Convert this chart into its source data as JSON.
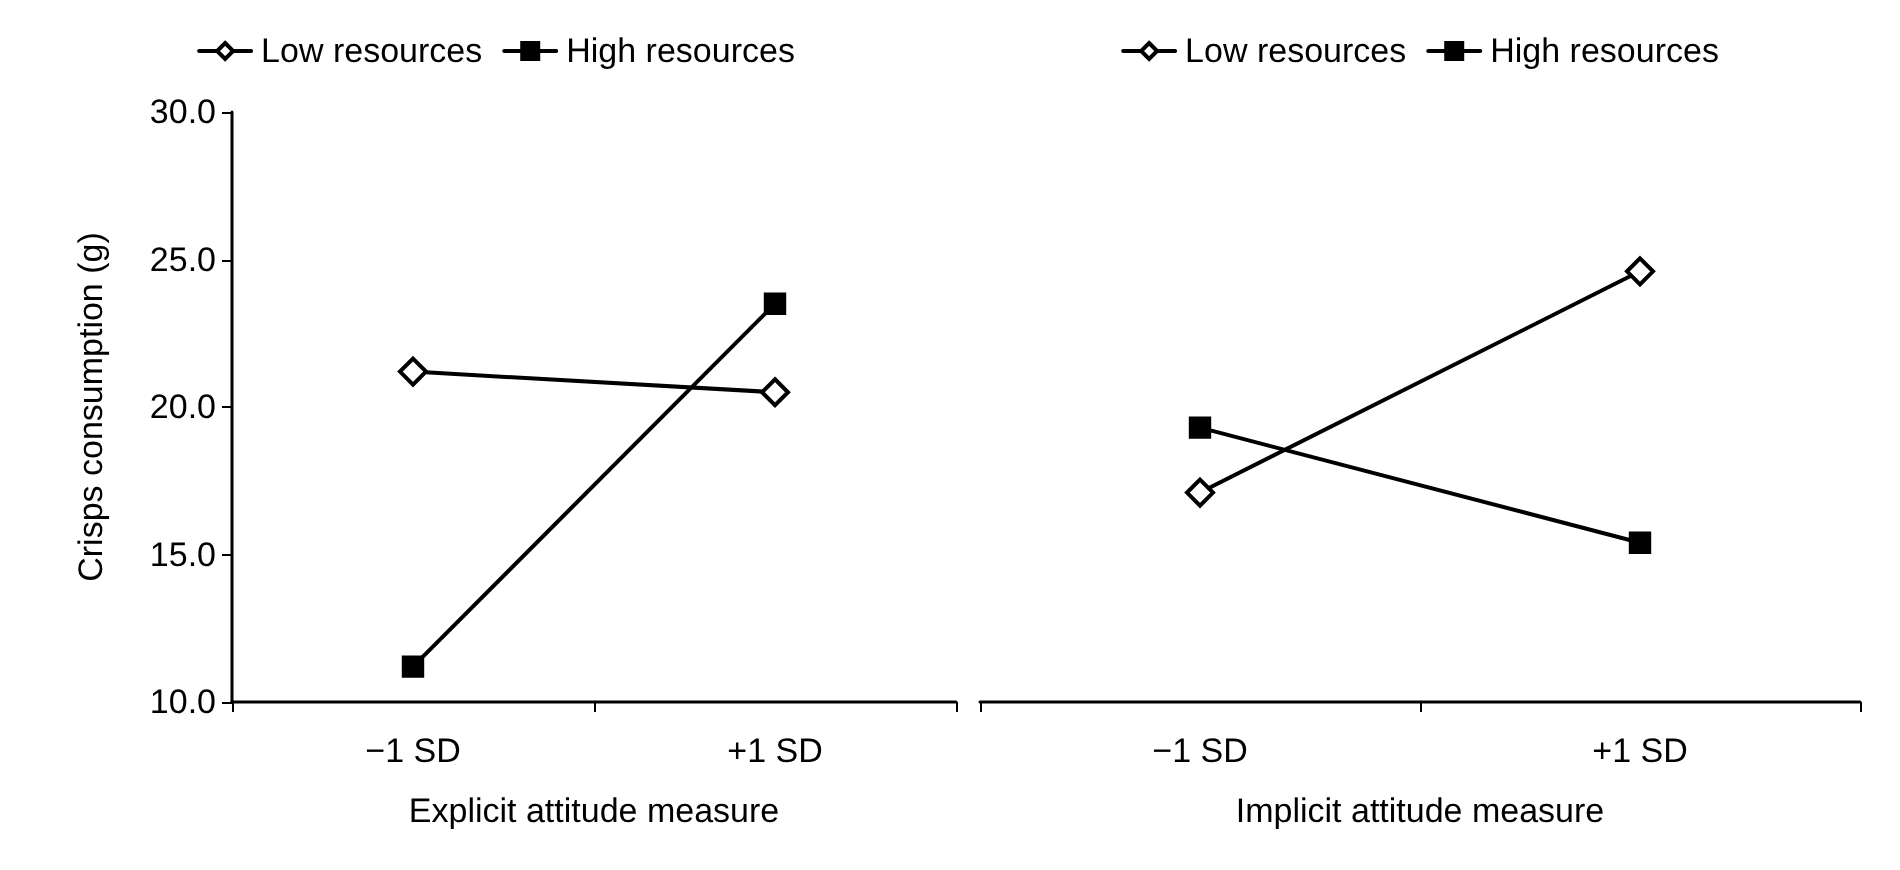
{
  "chart_data": [
    {
      "type": "line",
      "xlabel": "Explicit attitude measure",
      "ylabel": "Crisps consumption (g)",
      "categories": [
        "−1 SD",
        "+1 SD"
      ],
      "ylim": [
        10,
        30
      ],
      "yticks": [
        {
          "value": 10,
          "label": "10.0"
        },
        {
          "value": 15,
          "label": "15.0"
        },
        {
          "value": 20,
          "label": "20.0"
        },
        {
          "value": 25,
          "label": "25.0"
        },
        {
          "value": 30,
          "label": "30.0"
        }
      ],
      "grid": false,
      "legend": "top",
      "line_style": "solid",
      "series": [
        {
          "name": "Low resources",
          "color": "#000000",
          "marker": "diamond",
          "values": [
            21.2,
            20.5
          ]
        },
        {
          "name": "High resources",
          "color": "#000000",
          "marker": "square",
          "values": [
            11.2,
            23.5
          ]
        }
      ]
    },
    {
      "type": "line",
      "xlabel": "Implicit attitude measure",
      "categories": [
        "−1 SD",
        "+1 SD"
      ],
      "ylim": [
        10,
        30
      ],
      "tick_labels": "x",
      "grid": false,
      "legend": "top",
      "line_style": "solid",
      "series": [
        {
          "name": "Low resources",
          "color": "#000000",
          "marker": "diamond",
          "values": [
            17.1,
            24.6
          ]
        },
        {
          "name": "High resources",
          "color": "#000000",
          "marker": "square",
          "values": [
            19.3,
            15.4
          ]
        }
      ]
    }
  ]
}
